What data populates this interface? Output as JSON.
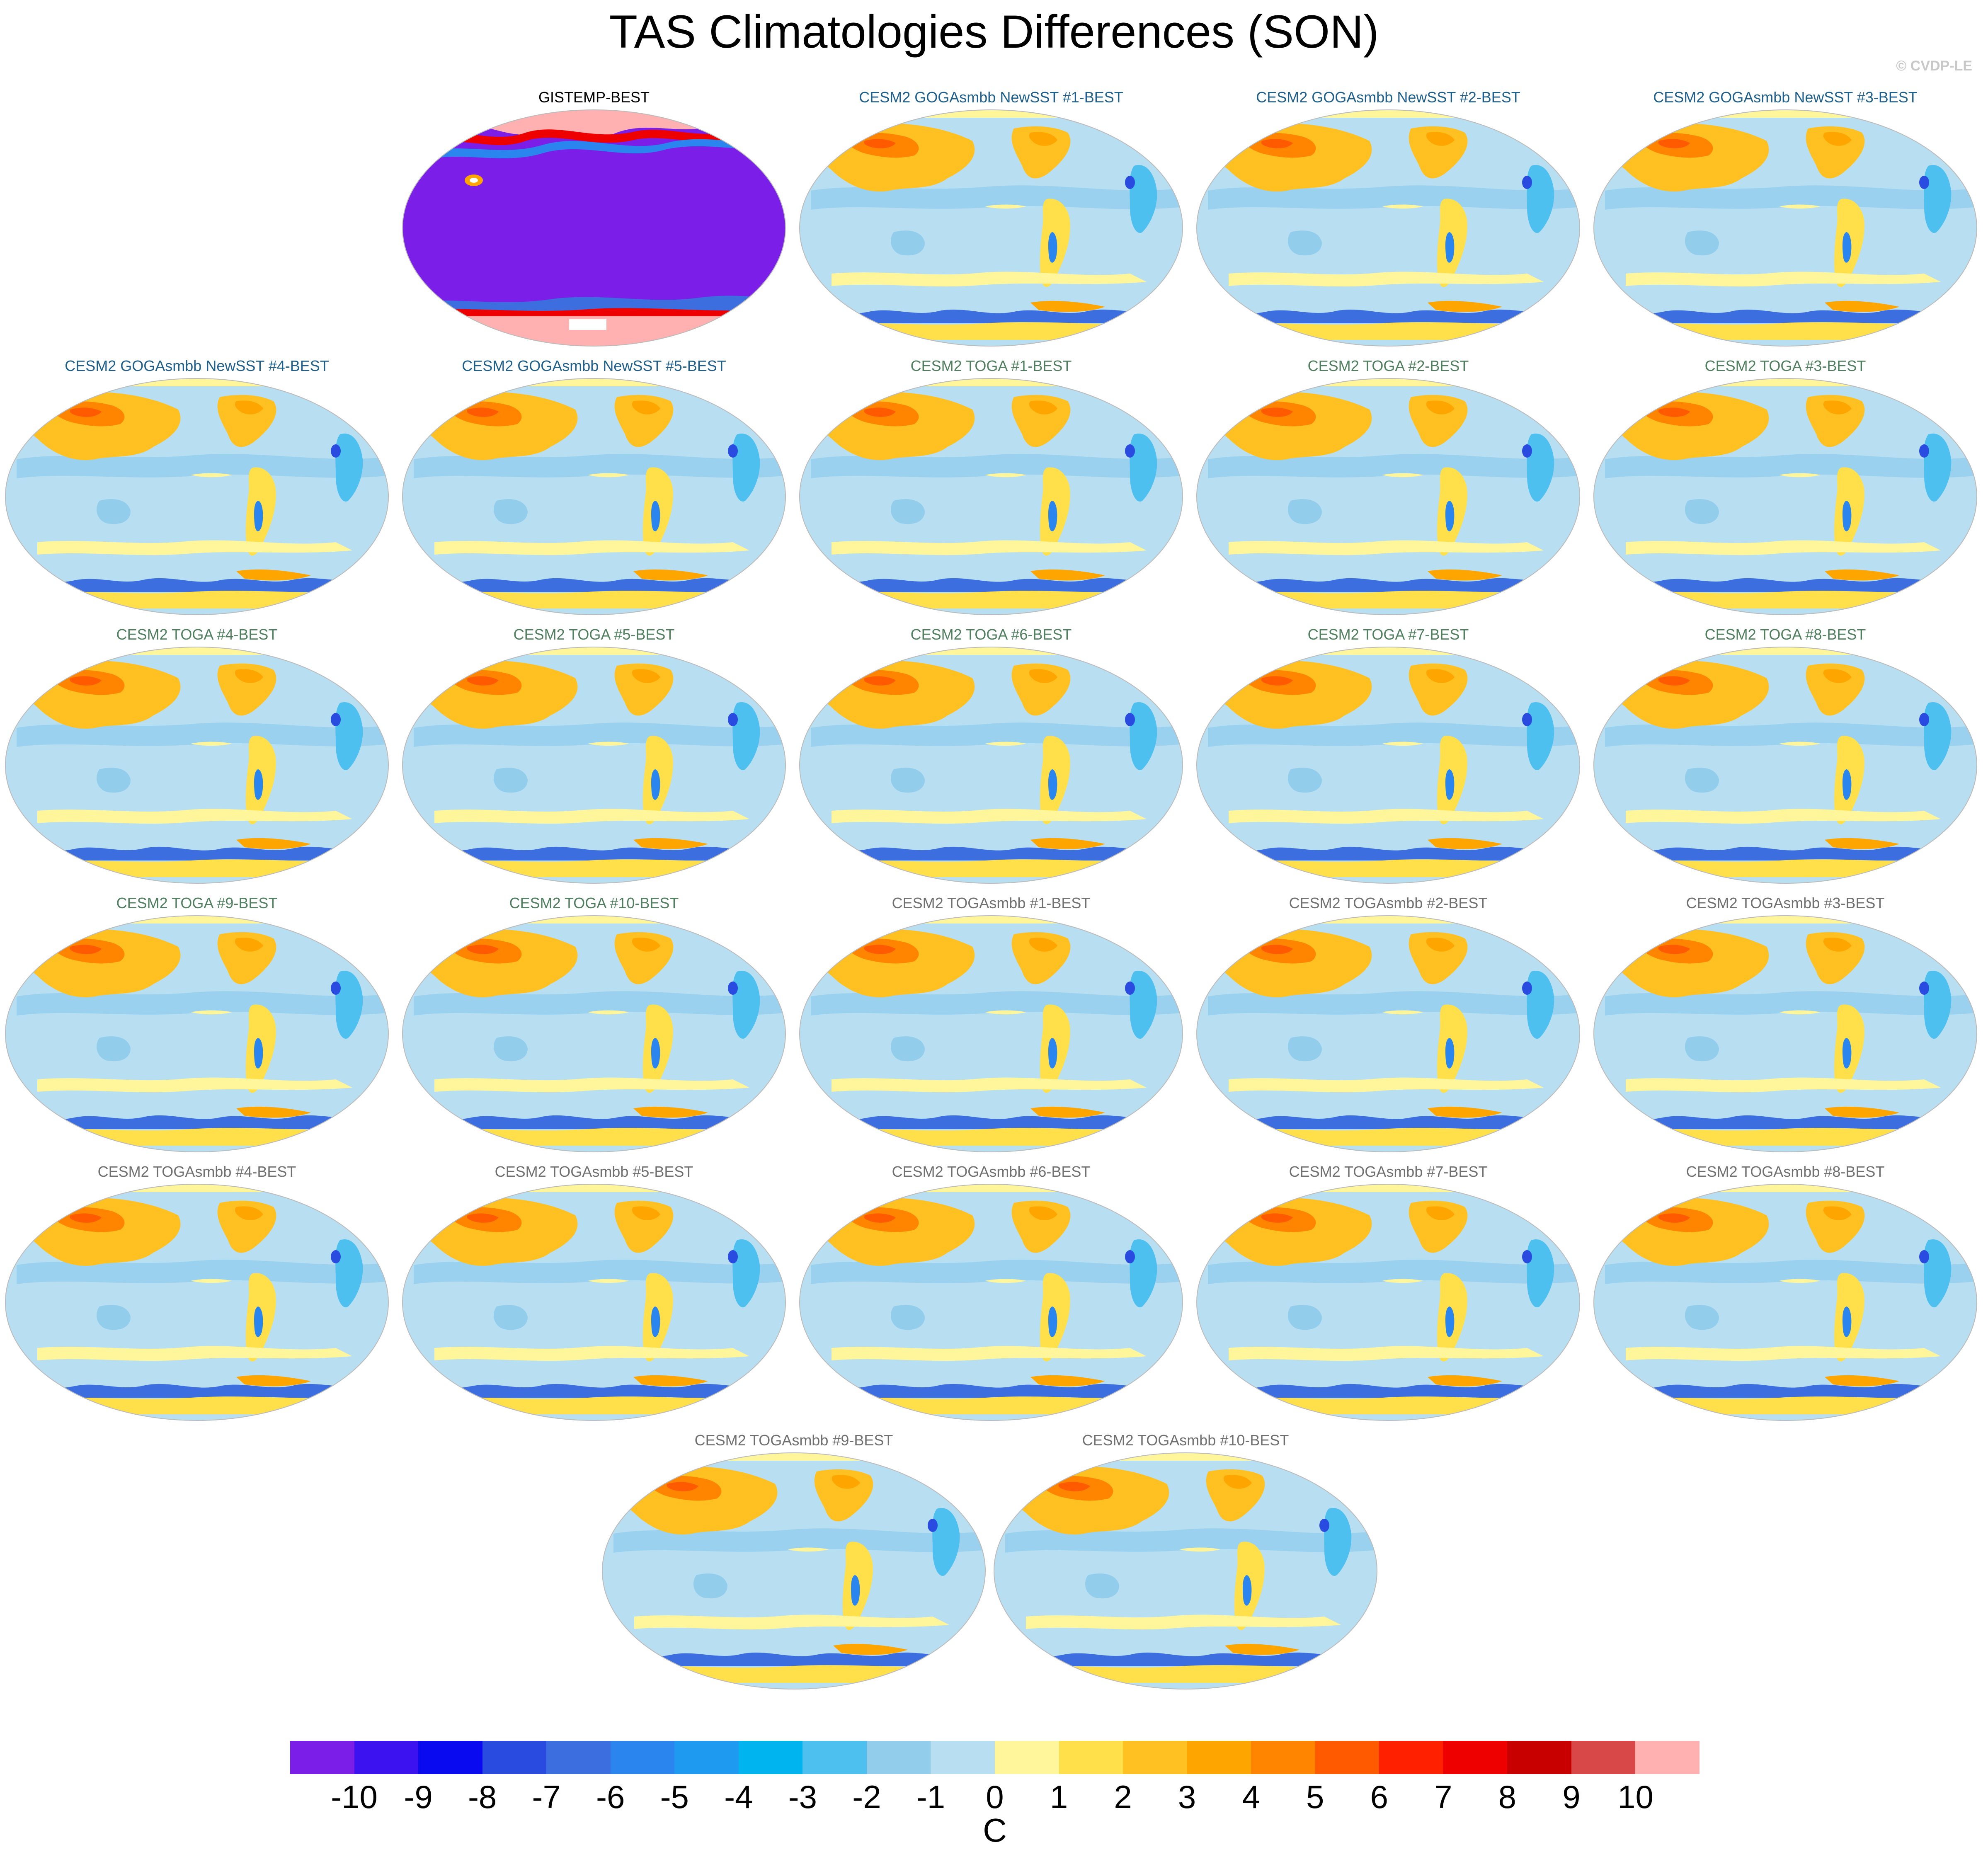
{
  "title": "TAS Climatologies Differences (SON)",
  "credit": "© CVDP-LE",
  "units": "C",
  "title_colors": {
    "obs": "#000000",
    "goga": "#1f5f8b",
    "toga": "#4f7f5f",
    "togasmbb": "#707070"
  },
  "panels": [
    {
      "title": "GISTEMP-BEST",
      "style": "obs"
    },
    {
      "title": "CESM2 GOGAsmbb NewSST #1-BEST",
      "style": "goga"
    },
    {
      "title": "CESM2 GOGAsmbb NewSST #2-BEST",
      "style": "goga"
    },
    {
      "title": "CESM2 GOGAsmbb NewSST #3-BEST",
      "style": "goga"
    },
    {
      "title": "CESM2 GOGAsmbb NewSST #4-BEST",
      "style": "goga"
    },
    {
      "title": "CESM2 GOGAsmbb NewSST #5-BEST",
      "style": "goga"
    },
    {
      "title": "CESM2 TOGA #1-BEST",
      "style": "toga"
    },
    {
      "title": "CESM2 TOGA #2-BEST",
      "style": "toga"
    },
    {
      "title": "CESM2 TOGA #3-BEST",
      "style": "toga"
    },
    {
      "title": "CESM2 TOGA #4-BEST",
      "style": "toga"
    },
    {
      "title": "CESM2 TOGA #5-BEST",
      "style": "toga"
    },
    {
      "title": "CESM2 TOGA #6-BEST",
      "style": "toga"
    },
    {
      "title": "CESM2 TOGA #7-BEST",
      "style": "toga"
    },
    {
      "title": "CESM2 TOGA #8-BEST",
      "style": "toga"
    },
    {
      "title": "CESM2 TOGA #9-BEST",
      "style": "toga"
    },
    {
      "title": "CESM2 TOGA #10-BEST",
      "style": "toga"
    },
    {
      "title": "CESM2 TOGAsmbb #1-BEST",
      "style": "togasmbb"
    },
    {
      "title": "CESM2 TOGAsmbb #2-BEST",
      "style": "togasmbb"
    },
    {
      "title": "CESM2 TOGAsmbb #3-BEST",
      "style": "togasmbb"
    },
    {
      "title": "CESM2 TOGAsmbb #4-BEST",
      "style": "togasmbb"
    },
    {
      "title": "CESM2 TOGAsmbb #5-BEST",
      "style": "togasmbb"
    },
    {
      "title": "CESM2 TOGAsmbb #6-BEST",
      "style": "togasmbb"
    },
    {
      "title": "CESM2 TOGAsmbb #7-BEST",
      "style": "togasmbb"
    },
    {
      "title": "CESM2 TOGAsmbb #8-BEST",
      "style": "togasmbb"
    },
    {
      "title": "CESM2 TOGAsmbb #9-BEST",
      "style": "togasmbb"
    },
    {
      "title": "CESM2 TOGAsmbb #10-BEST",
      "style": "togasmbb"
    }
  ],
  "colorbar": {
    "labels": [
      "-10",
      "-9",
      "-8",
      "-7",
      "-6",
      "-5",
      "-4",
      "-3",
      "-2",
      "-1",
      "0",
      "1",
      "2",
      "3",
      "4",
      "5",
      "6",
      "7",
      "8",
      "9",
      "10"
    ],
    "colors": [
      "#7b1fe8",
      "#3d12f0",
      "#0a0af0",
      "#2a4be0",
      "#3c6ee0",
      "#2a86ee",
      "#1e9af0",
      "#00b4f0",
      "#4ec0f0",
      "#92cdec",
      "#b8def2",
      "#fff59a",
      "#ffe04a",
      "#ffc021",
      "#ffa500",
      "#ff8500",
      "#ff5a00",
      "#ff2000",
      "#ee0000",
      "#c80000",
      "#d84848",
      "#ffb0b0"
    ]
  }
}
